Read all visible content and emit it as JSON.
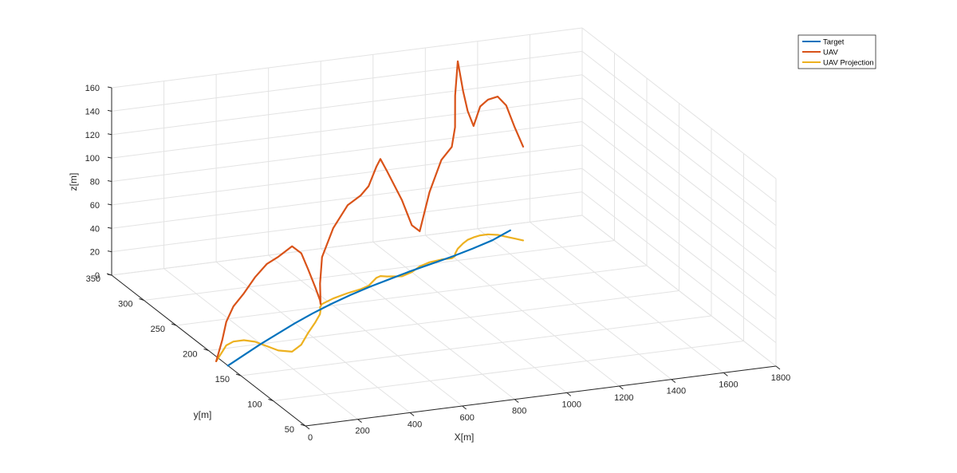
{
  "chart_data": {
    "type": "line3d",
    "title": "",
    "xlabel": "X[m]",
    "ylabel": "y[m]",
    "zlabel": "z[m]",
    "xlim": [
      0,
      1800
    ],
    "ylim": [
      50,
      350
    ],
    "zlim": [
      0,
      160
    ],
    "x_ticks": [
      0,
      200,
      400,
      600,
      800,
      1000,
      1200,
      1400,
      1600,
      1800
    ],
    "y_ticks": [
      50,
      100,
      150,
      200,
      250,
      300,
      350
    ],
    "z_ticks": [
      0,
      20,
      40,
      60,
      80,
      100,
      120,
      140,
      160
    ],
    "grid": true,
    "legend_position": "top-right",
    "series": [
      {
        "name": "Target",
        "color": "#0072BD",
        "x": [
          0,
          100,
          200,
          300,
          400,
          500,
          600,
          700,
          800,
          900,
          1000,
          1100,
          1200,
          1300,
          1400,
          1500
        ],
        "y": [
          170,
          185,
          200,
          214,
          228,
          241,
          253,
          264,
          274,
          283,
          292,
          300,
          308,
          317,
          327,
          340
        ],
        "z": [
          0,
          0,
          0,
          0,
          0,
          0,
          0,
          0,
          0,
          0,
          0,
          0,
          0,
          0,
          0,
          0
        ]
      },
      {
        "name": "UAV",
        "color": "#D95319",
        "x": [
          -20,
          40,
          80,
          120,
          160,
          190,
          210,
          230,
          270,
          330,
          400,
          470,
          520,
          540,
          550,
          570,
          630,
          700,
          760,
          800,
          830,
          860,
          880,
          900,
          950,
          1000,
          1050,
          1100,
          1150,
          1190,
          1210,
          1220,
          1250,
          1290,
          1320,
          1350,
          1380,
          1410,
          1440,
          1460,
          1480,
          1500
        ],
        "y": [
          180,
          195,
          205,
          210,
          210,
          205,
          195,
          185,
          180,
          190,
          208,
          225,
          238,
          245,
          250,
          255,
          262,
          268,
          272,
          276,
          282,
          288,
          290,
          288,
          285,
          290,
          298,
          303,
          305,
          305,
          308,
          312,
          320,
          328,
          333,
          336,
          338,
          338,
          335,
          330,
          325,
          320
        ],
        "z": [
          0,
          10,
          20,
          30,
          40,
          55,
          70,
          80,
          90,
          78,
          55,
          30,
          12,
          5,
          20,
          40,
          60,
          75,
          80,
          85,
          90,
          95,
          100,
          90,
          65,
          40,
          30,
          60,
          85,
          95,
          110,
          135,
          160,
          130,
          110,
          95,
          110,
          115,
          118,
          112,
          95,
          80
        ]
      },
      {
        "name": "UAV Projection",
        "color": "#EDB120",
        "x": [
          -20,
          40,
          80,
          120,
          160,
          190,
          210,
          230,
          270,
          330,
          400,
          470,
          520,
          540,
          550,
          570,
          630,
          700,
          760,
          800,
          830,
          860,
          880,
          900,
          950,
          1000,
          1050,
          1100,
          1150,
          1190,
          1210,
          1220,
          1250,
          1290,
          1320,
          1350,
          1380,
          1410,
          1440,
          1460,
          1480,
          1500
        ],
        "y": [
          180,
          195,
          205,
          210,
          210,
          205,
          195,
          185,
          180,
          190,
          208,
          225,
          238,
          245,
          250,
          255,
          262,
          268,
          272,
          276,
          282,
          288,
          290,
          288,
          285,
          290,
          298,
          303,
          305,
          305,
          308,
          312,
          320,
          328,
          333,
          336,
          338,
          338,
          335,
          330,
          325,
          320
        ],
        "z": [
          0,
          0,
          0,
          0,
          0,
          0,
          0,
          0,
          0,
          0,
          0,
          0,
          0,
          0,
          0,
          0,
          0,
          0,
          0,
          0,
          0,
          0,
          0,
          0,
          0,
          0,
          0,
          0,
          0,
          0,
          0,
          0,
          0,
          0,
          0,
          0,
          0,
          0,
          0,
          0,
          0,
          0
        ]
      }
    ]
  }
}
